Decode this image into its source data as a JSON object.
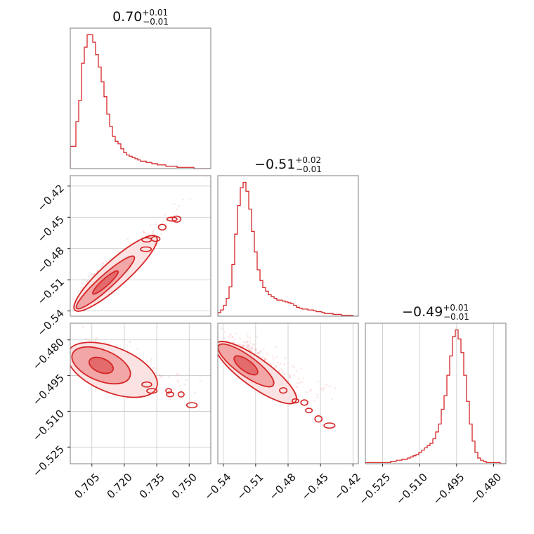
{
  "chart_data": [
    {
      "type": "histogram",
      "panel": "p1",
      "title": {
        "main": "0.70",
        "plus": "+0.01",
        "minus": "−0.01"
      },
      "xlim": [
        0.695,
        0.76
      ],
      "bins_start": 0.695,
      "bin_width": 0.0013,
      "counts": [
        18,
        18,
        38,
        55,
        85,
        98,
        108,
        108,
        102,
        92,
        82,
        70,
        58,
        44,
        34,
        26,
        22,
        20,
        16,
        13,
        11,
        10,
        9,
        8,
        7,
        6,
        6,
        5,
        5,
        4,
        4,
        3,
        3,
        3,
        2,
        2,
        2,
        2,
        1,
        1,
        1,
        1,
        1,
        1,
        0,
        0,
        0,
        0,
        0,
        0
      ],
      "xticks": [],
      "yticks": []
    },
    {
      "type": "scatter",
      "panel": "p2",
      "xlim": [
        0.695,
        0.76
      ],
      "ylim": [
        -0.545,
        -0.41
      ],
      "xticks": [],
      "yticks": [
        {
          "v": -0.42,
          "label": "−0.42"
        },
        {
          "v": -0.45,
          "label": "−0.45"
        },
        {
          "v": -0.48,
          "label": "−0.48"
        },
        {
          "v": -0.51,
          "label": "−0.51"
        },
        {
          "v": -0.54,
          "label": "−0.54"
        }
      ]
    },
    {
      "type": "histogram",
      "panel": "p3",
      "title": {
        "main": "−0.51",
        "plus": "+0.02",
        "minus": "−0.01"
      },
      "xlim": [
        -0.545,
        -0.415
      ],
      "bins_start": -0.545,
      "bin_width": 0.0026,
      "counts": [
        4,
        7,
        12,
        20,
        33,
        58,
        92,
        124,
        144,
        150,
        140,
        120,
        95,
        72,
        52,
        40,
        32,
        28,
        24,
        22,
        20,
        18,
        18,
        17,
        16,
        15,
        14,
        12,
        10,
        9,
        8,
        8,
        7,
        7,
        6,
        5,
        5,
        4,
        3,
        3,
        3,
        2,
        2,
        2,
        1,
        1,
        1,
        1,
        0,
        0
      ],
      "xticks": [],
      "yticks": []
    },
    {
      "type": "scatter",
      "panel": "p4",
      "xlim": [
        0.695,
        0.76
      ],
      "ylim": [
        -0.532,
        -0.473
      ],
      "xticks": [
        {
          "v": 0.705,
          "label": "0.705"
        },
        {
          "v": 0.72,
          "label": "0.720"
        },
        {
          "v": 0.735,
          "label": "0.735"
        },
        {
          "v": 0.75,
          "label": "0.750"
        }
      ],
      "yticks": [
        {
          "v": -0.48,
          "label": "−0.480"
        },
        {
          "v": -0.495,
          "label": "−0.495"
        },
        {
          "v": -0.51,
          "label": "−0.510"
        },
        {
          "v": -0.525,
          "label": "−0.525"
        }
      ]
    },
    {
      "type": "scatter",
      "panel": "p5",
      "xlim": [
        -0.545,
        -0.415
      ],
      "ylim": [
        -0.532,
        -0.473
      ],
      "xticks": [
        {
          "v": -0.54,
          "label": "−0.54"
        },
        {
          "v": -0.51,
          "label": "−0.51"
        },
        {
          "v": -0.48,
          "label": "−0.48"
        },
        {
          "v": -0.45,
          "label": "−0.45"
        },
        {
          "v": -0.42,
          "label": "−0.42"
        }
      ],
      "yticks": []
    },
    {
      "type": "histogram",
      "panel": "p6",
      "title": {
        "main": "−0.49",
        "plus": "+0.01",
        "minus": "−0.01"
      },
      "xlim": [
        -0.532,
        -0.475
      ],
      "bins_start": -0.532,
      "bin_width": 0.00114,
      "counts": [
        1,
        1,
        1,
        1,
        1,
        1,
        1,
        1,
        1,
        2,
        2,
        3,
        3,
        4,
        4,
        5,
        6,
        7,
        8,
        10,
        12,
        14,
        16,
        18,
        22,
        28,
        35,
        48,
        60,
        78,
        95,
        112,
        118,
        110,
        98,
        78,
        55,
        35,
        20,
        10,
        5,
        3,
        2,
        1,
        1,
        1,
        1,
        1,
        0,
        0
      ],
      "xticks": [
        {
          "v": -0.525,
          "label": "−0.525"
        },
        {
          "v": -0.51,
          "label": "−0.510"
        },
        {
          "v": -0.495,
          "label": "−0.495"
        },
        {
          "v": -0.48,
          "label": "−0.480"
        }
      ],
      "yticks": []
    }
  ]
}
